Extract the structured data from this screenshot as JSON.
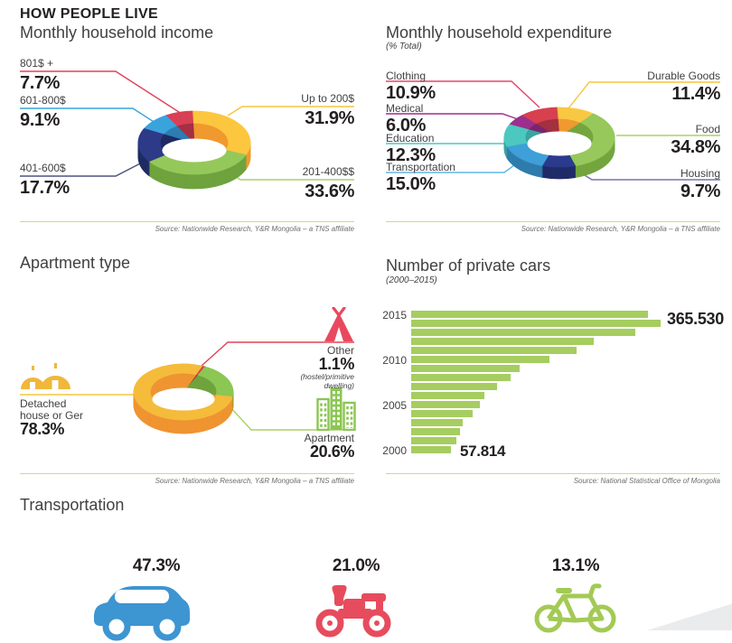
{
  "page": {
    "title": "HOW PEOPLE LIVE"
  },
  "colors": {
    "text_dark": "#231f20",
    "text_gray": "#414042",
    "source_text": "#6d6e71",
    "rule_green": "#c9dc86",
    "bar_green": "#a6cd60",
    "car_blue": "#3d95d2",
    "motorcycle_red": "#e64c5d",
    "bicycle_green": "#a3ca55"
  },
  "income": {
    "title": "Monthly household income",
    "source": "Source: Nationwide Research, Y&R Mongolia – a TNS affiliate",
    "segments": [
      {
        "label": "Up to 200$",
        "value": "31.9%",
        "pct": 31.9,
        "color": "#fdc63f",
        "side": "#f0992e",
        "line": "#f5c53d"
      },
      {
        "label": "201-400$$",
        "value": "33.6%",
        "pct": 33.6,
        "color": "#95c85a",
        "side": "#6fa33e",
        "line": "#abd06c"
      },
      {
        "label": "401-600$",
        "value": "17.7%",
        "pct": 17.7,
        "color": "#2c3a87",
        "side": "#1f2a62",
        "line": "#4d5280"
      },
      {
        "label": "601-800$",
        "value": "9.1%",
        "pct": 9.1,
        "color": "#3aa3dc",
        "side": "#2b7db3",
        "line": "#3aa3dc"
      },
      {
        "label": "801$ +",
        "value": "7.7%",
        "pct": 7.7,
        "color": "#d84055",
        "side": "#a52f43",
        "line": "#e04456"
      }
    ]
  },
  "expenditure": {
    "title": "Monthly household expenditure",
    "subtitle": "(% Total)",
    "source": "Source: Nationwide Research, Y&R Mongolia – a TNS affiliate",
    "segments": [
      {
        "label": "Durable Goods",
        "value": "11.4%",
        "pct": 11.4,
        "color": "#f8c843",
        "side": "#f0992e",
        "line": "#f5c53d"
      },
      {
        "label": "Food",
        "value": "34.8%",
        "pct": 34.8,
        "color": "#96c85b",
        "side": "#74a53f",
        "line": "#abd06c"
      },
      {
        "label": "Housing",
        "value": "9.7%",
        "pct": 9.7,
        "color": "#2b3a8c",
        "side": "#202c66",
        "line": "#7473b1"
      },
      {
        "label": "Transportation",
        "value": "15.0%",
        "pct": 15.0,
        "color": "#3f9fd8",
        "side": "#2f7cad",
        "line": "#62b6e5"
      },
      {
        "label": "Education",
        "value": "12.3%",
        "pct": 12.3,
        "color": "#4cc8c0",
        "side": "#39a59e",
        "line": "#4cc8c0"
      },
      {
        "label": "Medical",
        "value": "6.0%",
        "pct": 6.0,
        "color": "#9c2f8c",
        "side": "#7a2470",
        "line": "#9c2f8c"
      },
      {
        "label": "Clothing",
        "value": "10.9%",
        "pct": 10.9,
        "color": "#d8404f",
        "side": "#a5303f",
        "line": "#e8436a"
      }
    ]
  },
  "apartment": {
    "title": "Apartment type",
    "source": "Source: Nationwide Research, Y&R Mongolia – a TNS affiliate",
    "segments": [
      {
        "label": "Other",
        "value": "1.1%",
        "sublabel": "(hostel/primitive dwelling)",
        "pct": 1.1,
        "color": "#d8404f",
        "side": "#a5303f",
        "line": "#e04456"
      },
      {
        "label": "Apartment",
        "value": "20.6%",
        "pct": 20.6,
        "color": "#8cc653",
        "side": "#6fa33c",
        "line": "#abd06c"
      },
      {
        "label": "Detached house or Ger",
        "value": "78.3%",
        "pct": 78.3,
        "color": "#f5bb3a",
        "side": "#ef9431",
        "line": "#f5c53d"
      }
    ]
  },
  "cars": {
    "title": "Number of private cars",
    "subtitle": "(2000–2015)",
    "source": "Source: National Statistical Office of Mongolia",
    "max_label": "365.530",
    "min_label": "57.814",
    "ticks": [
      "2015",
      "2010",
      "2005",
      "2000"
    ],
    "years_top_to_bottom": [
      2015,
      2014,
      2013,
      2012,
      2011,
      2010,
      2009,
      2008,
      2007,
      2006,
      2005,
      2004,
      2003,
      2002,
      2001,
      2000
    ],
    "values_top_to_bottom": [
      347000,
      365530,
      328000,
      268000,
      242000,
      202000,
      159000,
      146000,
      126000,
      107000,
      101000,
      90000,
      76000,
      71000,
      66000,
      57814
    ]
  },
  "transportation": {
    "title": "Transportation",
    "items": [
      {
        "label": "Car",
        "value": "47.3%",
        "pct": 47.3,
        "color": "#3d95d2"
      },
      {
        "label": "Motorcycle",
        "value": "21.0%",
        "pct": 21.0,
        "color": "#e64c5d"
      },
      {
        "label": "Bicycle",
        "value": "13.1%",
        "pct": 13.1,
        "color": "#a3ca55"
      }
    ]
  },
  "chart_data": [
    {
      "type": "pie",
      "title": "Monthly household income",
      "labels": [
        "Up to 200$",
        "201-400$$",
        "401-600$",
        "601-800$",
        "801$ +"
      ],
      "values": [
        31.9,
        33.6,
        17.7,
        9.1,
        7.7
      ],
      "unit": "%",
      "colors": [
        "#fdc63f",
        "#95c85a",
        "#2c3a87",
        "#3aa3dc",
        "#d84055"
      ],
      "legend_position": "callout-labels",
      "style": "3d-donut"
    },
    {
      "type": "pie",
      "title": "Monthly household expenditure (% Total)",
      "labels": [
        "Durable Goods",
        "Food",
        "Housing",
        "Transportation",
        "Education",
        "Medical",
        "Clothing"
      ],
      "values": [
        11.4,
        34.8,
        9.7,
        15.0,
        12.3,
        6.0,
        10.9
      ],
      "unit": "%",
      "colors": [
        "#f8c843",
        "#96c85b",
        "#2b3a8c",
        "#3f9fd8",
        "#4cc8c0",
        "#9c2f8c",
        "#d8404f"
      ],
      "legend_position": "callout-labels",
      "style": "3d-donut"
    },
    {
      "type": "pie",
      "title": "Apartment type",
      "labels": [
        "Other (hostel/primitive dwelling)",
        "Apartment",
        "Detached house or Ger"
      ],
      "values": [
        1.1,
        20.6,
        78.3
      ],
      "unit": "%",
      "colors": [
        "#d8404f",
        "#8cc653",
        "#f5bb3a"
      ],
      "legend_position": "callout-labels",
      "style": "3d-donut"
    },
    {
      "type": "bar",
      "title": "Number of private cars",
      "subtitle": "(2000–2015)",
      "orientation": "horizontal",
      "x": [
        2000,
        2001,
        2002,
        2003,
        2004,
        2005,
        2006,
        2007,
        2008,
        2009,
        2010,
        2011,
        2012,
        2013,
        2014,
        2015
      ],
      "values": [
        57814,
        66000,
        71000,
        76000,
        90000,
        101000,
        107000,
        126000,
        146000,
        159000,
        202000,
        242000,
        268000,
        328000,
        365530,
        347000
      ],
      "data_labels": {
        "max": "365.530",
        "min": "57.814"
      },
      "axis_ticks": [
        "2015",
        "2010",
        "2005",
        "2000"
      ],
      "bar_color": "#a6cd60",
      "grid": false,
      "values_note": "values estimated from bar lengths except labeled endpoints"
    },
    {
      "type": "table",
      "title": "Transportation",
      "labels": [
        "Car",
        "Motorcycle",
        "Bicycle"
      ],
      "values": [
        47.3,
        21.0,
        13.1
      ],
      "unit": "%"
    }
  ]
}
